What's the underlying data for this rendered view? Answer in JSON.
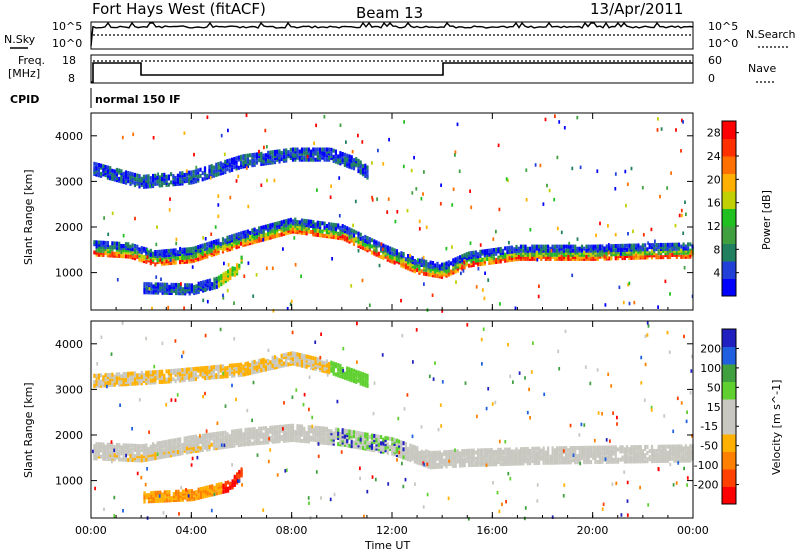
{
  "header": {
    "radar": "Fort Hays West (fitACF)",
    "beam": "Beam 13",
    "date": "13/Apr/2011"
  },
  "noise_panel": {
    "left_label": "N.Sky",
    "left_ticks": [
      "10^5",
      "10^0"
    ],
    "right_ticks": [
      "10^5",
      "10^0"
    ],
    "right_label": "N.Search"
  },
  "freq_panel": {
    "left_label_1": "Freq.",
    "left_label_2": "[MHz]",
    "left_ticks": [
      "18",
      "8"
    ],
    "right_ticks": [
      "60",
      "0"
    ],
    "right_label": "Nave"
  },
  "cpid": {
    "label": "CPID",
    "value": "normal 150 IF"
  },
  "colors": {
    "power": [
      "#0000ff",
      "#2040d8",
      "#208060",
      "#40a040",
      "#20c020",
      "#c0d000",
      "#ffb000",
      "#ff7000",
      "#ff3000",
      "#ff0000"
    ],
    "velocity": [
      "#2020c0",
      "#2060e0",
      "#40a040",
      "#60d030",
      "#c8c8c0",
      "#c8c8c0",
      "#ffb000",
      "#ff8000",
      "#ff4000",
      "#ff0000"
    ],
    "ground": "#b8b8b0"
  },
  "chart_data": [
    {
      "type": "heatmap",
      "panel": "power",
      "ylabel": "Slant Range [km]",
      "xlabel": "",
      "x_ticks": [
        "00:00",
        "04:00",
        "08:00",
        "12:00",
        "16:00",
        "20:00",
        "00:00"
      ],
      "y_ticks": [
        "1000",
        "2000",
        "3000",
        "4000"
      ],
      "xlim_hours": [
        0,
        24
      ],
      "ylim_km": [
        180,
        4500
      ],
      "colorbar": {
        "label": "Power [dB]",
        "ticks": [
          "4",
          "8",
          "12",
          "16",
          "20",
          "24",
          "28"
        ],
        "range": [
          0,
          30
        ]
      },
      "bands": [
        {
          "name": "main",
          "points": [
            [
              0,
              1550
            ],
            [
              1.5,
              1500
            ],
            [
              2.5,
              1330
            ],
            [
              4,
              1400
            ],
            [
              6,
              1750
            ],
            [
              8,
              2050
            ],
            [
              10,
              1900
            ],
            [
              11.5,
              1500
            ],
            [
              13,
              1150
            ],
            [
              14,
              1050
            ],
            [
              15,
              1300
            ],
            [
              17,
              1450
            ],
            [
              20,
              1450
            ],
            [
              22,
              1480
            ],
            [
              24,
              1500
            ]
          ],
          "width": 300
        },
        {
          "name": "upper",
          "points": [
            [
              0,
              3300
            ],
            [
              2,
              3000
            ],
            [
              4,
              3100
            ],
            [
              6,
              3450
            ],
            [
              8,
              3600
            ],
            [
              9.5,
              3600
            ],
            [
              10.5,
              3400
            ],
            [
              11,
              3200
            ]
          ],
          "width": 250
        },
        {
          "name": "lower",
          "points": [
            [
              2,
              680
            ],
            [
              4,
              650
            ],
            [
              5,
              800
            ],
            [
              5.8,
              1100
            ],
            [
              6,
              1300
            ]
          ],
          "width": 220
        }
      ]
    },
    {
      "type": "heatmap",
      "panel": "velocity",
      "ylabel": "Slant Range [km]",
      "xlabel": "Time UT",
      "x_ticks": [
        "00:00",
        "04:00",
        "08:00",
        "12:00",
        "16:00",
        "20:00",
        "00:00"
      ],
      "y_ticks": [
        "1000",
        "2000",
        "3000",
        "4000"
      ],
      "xlim_hours": [
        0,
        24
      ],
      "ylim_km": [
        180,
        4500
      ],
      "colorbar": {
        "label": "Velocity [m s^-1]",
        "ticks": [
          "200",
          "100",
          "50",
          "15",
          "-15",
          "-50",
          "-100",
          "-200"
        ],
        "range": [
          -250,
          250
        ]
      },
      "bands": [
        {
          "name": "main",
          "points": [
            [
              0,
              1650
            ],
            [
              2,
              1600
            ],
            [
              4,
              1800
            ],
            [
              6,
              1950
            ],
            [
              8,
              2050
            ],
            [
              10,
              1950
            ],
            [
              12,
              1750
            ],
            [
              13.5,
              1450
            ],
            [
              15,
              1500
            ],
            [
              18,
              1550
            ],
            [
              24,
              1600
            ]
          ],
          "width": 320
        },
        {
          "name": "upper",
          "points": [
            [
              0,
              3200
            ],
            [
              3,
              3300
            ],
            [
              6,
              3450
            ],
            [
              8,
              3700
            ],
            [
              9.5,
              3500
            ],
            [
              11,
              3200
            ]
          ],
          "width": 260
        },
        {
          "name": "lower",
          "points": [
            [
              2,
              650
            ],
            [
              4,
              700
            ],
            [
              5.5,
              900
            ],
            [
              6,
              1200
            ]
          ],
          "width": 220
        }
      ]
    }
  ]
}
